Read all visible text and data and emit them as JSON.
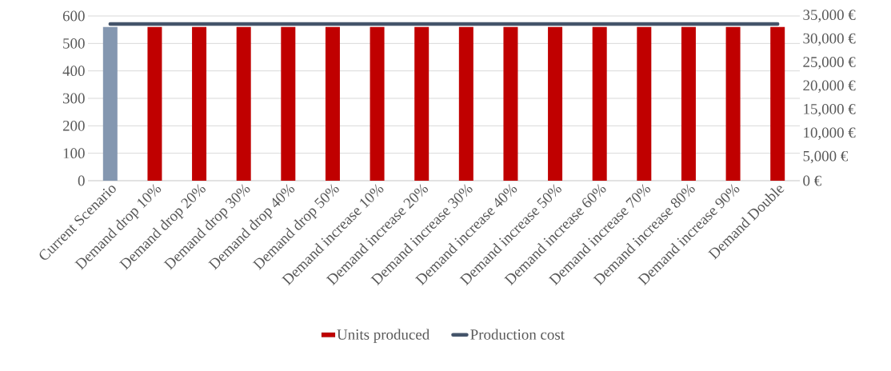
{
  "chart_data": {
    "type": "bar",
    "categories": [
      "Current Scenario",
      "Demand drop 10%",
      "Demand drop 20%",
      "Demand drop 30%",
      "Demand drop 40%",
      "Demand drop 50%",
      "Demand increase 10%",
      "Demand increase 20%",
      "Demand increase 30%",
      "Demand increase 40%",
      "Demand increase 50%",
      "Demand increase 60%",
      "Demand increase 70%",
      "Demand increase 80%",
      "Demand increase 90%",
      "Demand Double"
    ],
    "series": [
      {
        "name": "Units produced",
        "color": "#c00000",
        "colors": [
          "#8497b0",
          "#c00000",
          "#c00000",
          "#c00000",
          "#c00000",
          "#c00000",
          "#c00000",
          "#c00000",
          "#c00000",
          "#c00000",
          "#c00000",
          "#c00000",
          "#c00000",
          "#c00000",
          "#c00000",
          "#c00000"
        ],
        "values": [
          560,
          560,
          560,
          560,
          560,
          560,
          560,
          560,
          560,
          560,
          560,
          560,
          560,
          560,
          560,
          560
        ]
      },
      {
        "name": "Production cost",
        "type": "line",
        "axis": "y2",
        "color": "#44546a",
        "values": [
          33300,
          33300,
          33300,
          33300,
          33300,
          33300,
          33300,
          33300,
          33300,
          33300,
          33300,
          33300,
          33300,
          33300,
          33300,
          33300
        ]
      }
    ],
    "ylim": [
      0,
      600
    ],
    "yticks": [
      0,
      100,
      200,
      300,
      400,
      500,
      600
    ],
    "y2lim": [
      0,
      35000
    ],
    "y2ticks": [
      {
        "value": 0,
        "label": "0 €"
      },
      {
        "value": 5000,
        "label": "5,000 €"
      },
      {
        "value": 10000,
        "label": "10,000 €"
      },
      {
        "value": 15000,
        "label": "15,000 €"
      },
      {
        "value": 20000,
        "label": "20,000 €"
      },
      {
        "value": 25000,
        "label": "25,000 €"
      },
      {
        "value": 30000,
        "label": "30,000 €"
      },
      {
        "value": 35000,
        "label": "35,000 €"
      }
    ],
    "grid": "y",
    "legend": "bottom",
    "marker": "none",
    "line_style": "solid"
  }
}
